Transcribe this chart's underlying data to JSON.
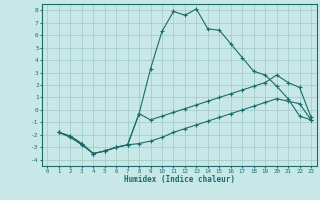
{
  "xlabel": "Humidex (Indice chaleur)",
  "background_color": "#c8e8e8",
  "grid_color": "#a0c8c8",
  "line_color": "#1a6b6b",
  "xlim": [
    -0.5,
    23.5
  ],
  "ylim": [
    -4.5,
    8.5
  ],
  "yticks": [
    -4,
    -3,
    -2,
    -1,
    0,
    1,
    2,
    3,
    4,
    5,
    6,
    7,
    8
  ],
  "xticks": [
    0,
    1,
    2,
    3,
    4,
    5,
    6,
    7,
    8,
    9,
    10,
    11,
    12,
    13,
    14,
    15,
    16,
    17,
    18,
    19,
    20,
    21,
    22,
    23
  ],
  "line1_x": [
    1,
    2,
    3,
    4,
    5,
    6,
    7,
    8,
    9,
    10,
    11,
    12,
    13,
    14,
    15,
    16,
    17,
    18,
    19,
    20,
    21,
    22,
    23
  ],
  "line1_y": [
    -1.8,
    -2.2,
    -2.8,
    -3.5,
    -3.3,
    -3.0,
    -2.8,
    -0.3,
    3.3,
    6.3,
    7.9,
    7.6,
    8.1,
    6.5,
    6.4,
    5.3,
    4.2,
    3.1,
    2.8,
    1.9,
    0.9,
    -0.5,
    -0.8
  ],
  "line2_x": [
    1,
    2,
    3,
    4,
    5,
    6,
    7,
    8,
    9,
    10,
    11,
    12,
    13,
    14,
    15,
    16,
    17,
    18,
    19,
    20,
    21,
    22,
    23
  ],
  "line2_y": [
    -1.8,
    -2.1,
    -2.7,
    -3.5,
    -3.3,
    -3.0,
    -2.8,
    -0.3,
    -0.8,
    -0.5,
    -0.2,
    0.1,
    0.4,
    0.7,
    1.0,
    1.3,
    1.6,
    1.9,
    2.2,
    2.8,
    2.2,
    1.8,
    -0.6
  ],
  "line3_x": [
    1,
    2,
    3,
    4,
    5,
    6,
    7,
    8,
    9,
    10,
    11,
    12,
    13,
    14,
    15,
    16,
    17,
    18,
    19,
    20,
    21,
    22,
    23
  ],
  "line3_y": [
    -1.8,
    -2.1,
    -2.7,
    -3.5,
    -3.3,
    -3.0,
    -2.8,
    -2.7,
    -2.5,
    -2.2,
    -1.8,
    -1.5,
    -1.2,
    -0.9,
    -0.6,
    -0.3,
    0.0,
    0.3,
    0.6,
    0.9,
    0.7,
    0.5,
    -0.8
  ]
}
